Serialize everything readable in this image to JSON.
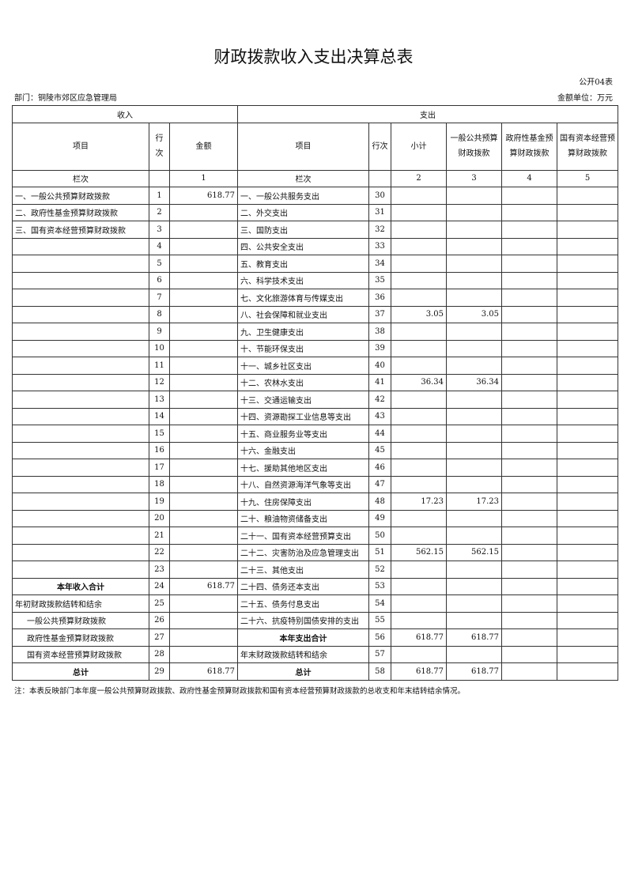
{
  "title": "财政拨款收入支出决算总表",
  "form_no": "公开04表",
  "department": "部门：铜陵市郊区应急管理局",
  "unit": "金额单位：万元",
  "headers": {
    "income": "收入",
    "expense": "支出",
    "item": "项目",
    "row_no": "行次",
    "amount": "金额",
    "subtotal": "小计",
    "general": "一般公共预算财政拨款",
    "fund": "政府性基金预算财政拨款",
    "state": "国有资本经营预算财政拨款",
    "col_label": "栏次",
    "c1": "1",
    "c2": "2",
    "c3": "3",
    "c4": "4",
    "c5": "5"
  },
  "rows": [
    {
      "in": "一、一般公共预算财政拨款",
      "in_no": "1",
      "in_amt": "618.77",
      "out": "一、一般公共服务支出",
      "out_no": "30",
      "sub": "",
      "gen": "",
      "fund": "",
      "state": ""
    },
    {
      "in": "二、政府性基金预算财政拨款",
      "in_no": "2",
      "in_amt": "",
      "out": "二、外交支出",
      "out_no": "31",
      "sub": "",
      "gen": "",
      "fund": "",
      "state": ""
    },
    {
      "in": "三、国有资本经营预算财政拨款",
      "in_no": "3",
      "in_amt": "",
      "out": "三、国防支出",
      "out_no": "32",
      "sub": "",
      "gen": "",
      "fund": "",
      "state": ""
    },
    {
      "in": "",
      "in_no": "4",
      "in_amt": "",
      "out": "四、公共安全支出",
      "out_no": "33",
      "sub": "",
      "gen": "",
      "fund": "",
      "state": ""
    },
    {
      "in": "",
      "in_no": "5",
      "in_amt": "",
      "out": "五、教育支出",
      "out_no": "34",
      "sub": "",
      "gen": "",
      "fund": "",
      "state": ""
    },
    {
      "in": "",
      "in_no": "6",
      "in_amt": "",
      "out": "六、科学技术支出",
      "out_no": "35",
      "sub": "",
      "gen": "",
      "fund": "",
      "state": ""
    },
    {
      "in": "",
      "in_no": "7",
      "in_amt": "",
      "out": "七、文化旅游体育与传媒支出",
      "out_no": "36",
      "sub": "",
      "gen": "",
      "fund": "",
      "state": ""
    },
    {
      "in": "",
      "in_no": "8",
      "in_amt": "",
      "out": "八、社会保障和就业支出",
      "out_no": "37",
      "sub": "3.05",
      "gen": "3.05",
      "fund": "",
      "state": ""
    },
    {
      "in": "",
      "in_no": "9",
      "in_amt": "",
      "out": "九、卫生健康支出",
      "out_no": "38",
      "sub": "",
      "gen": "",
      "fund": "",
      "state": ""
    },
    {
      "in": "",
      "in_no": "10",
      "in_amt": "",
      "out": "十、节能环保支出",
      "out_no": "39",
      "sub": "",
      "gen": "",
      "fund": "",
      "state": ""
    },
    {
      "in": "",
      "in_no": "11",
      "in_amt": "",
      "out": "十一、城乡社区支出",
      "out_no": "40",
      "sub": "",
      "gen": "",
      "fund": "",
      "state": ""
    },
    {
      "in": "",
      "in_no": "12",
      "in_amt": "",
      "out": "十二、农林水支出",
      "out_no": "41",
      "sub": "36.34",
      "gen": "36.34",
      "fund": "",
      "state": ""
    },
    {
      "in": "",
      "in_no": "13",
      "in_amt": "",
      "out": "十三、交通运输支出",
      "out_no": "42",
      "sub": "",
      "gen": "",
      "fund": "",
      "state": ""
    },
    {
      "in": "",
      "in_no": "14",
      "in_amt": "",
      "out": "十四、资源勘探工业信息等支出",
      "out_no": "43",
      "sub": "",
      "gen": "",
      "fund": "",
      "state": ""
    },
    {
      "in": "",
      "in_no": "15",
      "in_amt": "",
      "out": "十五、商业服务业等支出",
      "out_no": "44",
      "sub": "",
      "gen": "",
      "fund": "",
      "state": ""
    },
    {
      "in": "",
      "in_no": "16",
      "in_amt": "",
      "out": "十六、金融支出",
      "out_no": "45",
      "sub": "",
      "gen": "",
      "fund": "",
      "state": ""
    },
    {
      "in": "",
      "in_no": "17",
      "in_amt": "",
      "out": "十七、援助其他地区支出",
      "out_no": "46",
      "sub": "",
      "gen": "",
      "fund": "",
      "state": ""
    },
    {
      "in": "",
      "in_no": "18",
      "in_amt": "",
      "out": "十八、自然资源海洋气象等支出",
      "out_no": "47",
      "sub": "",
      "gen": "",
      "fund": "",
      "state": ""
    },
    {
      "in": "",
      "in_no": "19",
      "in_amt": "",
      "out": "十九、住房保障支出",
      "out_no": "48",
      "sub": "17.23",
      "gen": "17.23",
      "fund": "",
      "state": ""
    },
    {
      "in": "",
      "in_no": "20",
      "in_amt": "",
      "out": "二十、粮油物资储备支出",
      "out_no": "49",
      "sub": "",
      "gen": "",
      "fund": "",
      "state": ""
    },
    {
      "in": "",
      "in_no": "21",
      "in_amt": "",
      "out": "二十一、国有资本经营预算支出",
      "out_no": "50",
      "sub": "",
      "gen": "",
      "fund": "",
      "state": ""
    },
    {
      "in": "",
      "in_no": "22",
      "in_amt": "",
      "out": "二十二、灾害防治及应急管理支出",
      "out_no": "51",
      "sub": "562.15",
      "gen": "562.15",
      "fund": "",
      "state": ""
    },
    {
      "in": "",
      "in_no": "23",
      "in_amt": "",
      "out": "二十三、其他支出",
      "out_no": "52",
      "sub": "",
      "gen": "",
      "fund": "",
      "state": ""
    },
    {
      "in": "本年收入合计",
      "in_no": "24",
      "in_amt": "618.77",
      "out": "二十四、债务还本支出",
      "out_no": "53",
      "sub": "",
      "gen": "",
      "fund": "",
      "state": "",
      "in_bold": true
    },
    {
      "in": "年初财政拨款结转和结余",
      "in_no": "25",
      "in_amt": "",
      "out": "二十五、债务付息支出",
      "out_no": "54",
      "sub": "",
      "gen": "",
      "fund": "",
      "state": ""
    },
    {
      "in": "一般公共预算财政拨款",
      "in_no": "26",
      "in_amt": "",
      "out": "二十六、抗疫特别国债安排的支出",
      "out_no": "55",
      "sub": "",
      "gen": "",
      "fund": "",
      "state": "",
      "in_indent": true
    },
    {
      "in": "政府性基金预算财政拨款",
      "in_no": "27",
      "in_amt": "",
      "out": "本年支出合计",
      "out_no": "56",
      "sub": "618.77",
      "gen": "618.77",
      "fund": "",
      "state": "",
      "in_indent": true,
      "out_bold": true
    },
    {
      "in": "国有资本经营预算财政拨款",
      "in_no": "28",
      "in_amt": "",
      "out": "年末财政拨款结转和结余",
      "out_no": "57",
      "sub": "",
      "gen": "",
      "fund": "",
      "state": "",
      "in_indent": true
    },
    {
      "in": "总计",
      "in_no": "29",
      "in_amt": "618.77",
      "out": "总计",
      "out_no": "58",
      "sub": "618.77",
      "gen": "618.77",
      "fund": "",
      "state": "",
      "in_bold": true,
      "out_bold": true
    }
  ],
  "note": "注：本表反映部门本年度一般公共预算财政拨款、政府性基金预算财政拨款和国有资本经营预算财政拨款的总收支和年末结转结余情况。"
}
